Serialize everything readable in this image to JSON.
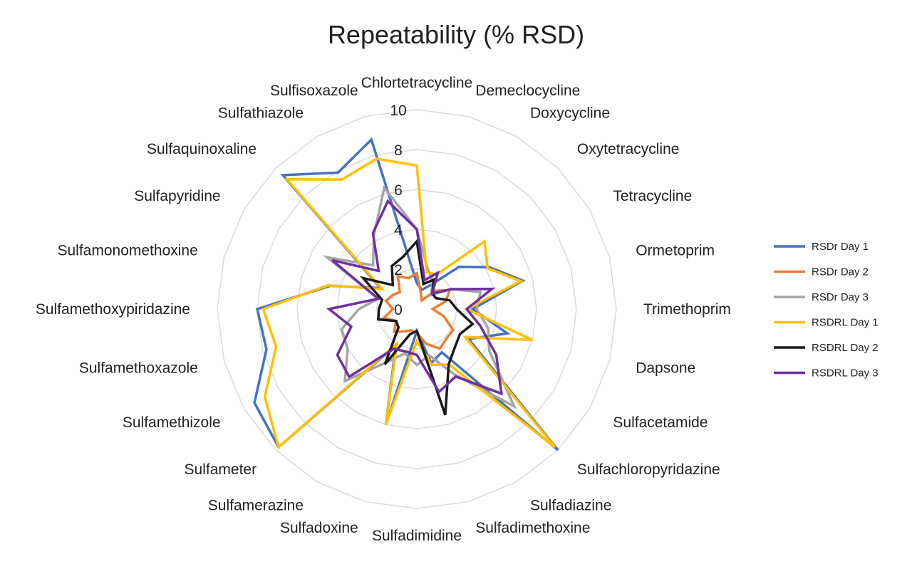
{
  "chart_data": {
    "type": "radar",
    "title": "Repeatability (% RSD)",
    "categories": [
      "Chlortetracycline",
      "Demeclocycline",
      "Doxycycline",
      "Oxytetracycline",
      "Tetracycline",
      "Ormetoprim",
      "Trimethoprim",
      "Dapsone",
      "Sulfacetamide",
      "Sulfachloropyridazine",
      "Sulfadiazine",
      "Sulfadimethoxine",
      "Sulfadimidine",
      "Sulfadoxine",
      "Sulfamerazine",
      "Sulfameter",
      "Sulfamethizole",
      "Sulfamethoxazole",
      "Sulfamethoxypiridazine",
      "Sulfamonomethoxine",
      "Sulfapyridine",
      "Sulfaquinoxaline",
      "Sulfathiazole",
      "Sulfisoxazole"
    ],
    "r_ticks": [
      0,
      2,
      4,
      6,
      8,
      10
    ],
    "rlim": [
      0,
      10
    ],
    "grid": true,
    "legend_position": "right",
    "series": [
      {
        "name": "RSDr Day 1",
        "color": "#4472C4",
        "values": [
          1.3,
          1.0,
          1.4,
          3.0,
          4.2,
          5.5,
          2.8,
          4.7,
          3.0,
          10.0,
          2.5,
          2.8,
          1.1,
          6.0,
          2.1,
          9.8,
          9.4,
          7.8,
          8.0,
          4.5,
          2.1,
          9.5,
          7.9,
          8.8
        ]
      },
      {
        "name": "RSDr Day 2",
        "color": "#ED7D31",
        "values": [
          1.8,
          0.8,
          0.5,
          1.3,
          1.9,
          1.5,
          0.8,
          1.4,
          2.1,
          2.1,
          2.3,
          1.8,
          1.2,
          1.1,
          1.3,
          1.6,
          1.2,
          1.7,
          1.2,
          1.6,
          1.4,
          1.2,
          1.9,
          1.6
        ]
      },
      {
        "name": "RSDr Day 3",
        "color": "#A5A5A5",
        "values": [
          4.0,
          2.1,
          1.6,
          1.0,
          2.0,
          3.3,
          3.0,
          3.7,
          4.2,
          6.9,
          3.8,
          2.4,
          2.8,
          2.3,
          3.1,
          5.1,
          4.0,
          3.9,
          2.9,
          2.0,
          5.2,
          3.1,
          4.3,
          6.3
        ]
      },
      {
        "name": "RSDRL Day 1",
        "color": "#FFC000",
        "values": [
          7.2,
          1.9,
          2.0,
          4.8,
          4.1,
          5.4,
          2.5,
          6.0,
          2.8,
          9.8,
          3.2,
          2.9,
          1.6,
          6.0,
          2.0,
          9.8,
          8.8,
          7.3,
          7.7,
          4.6,
          2.0,
          9.2,
          7.5,
          7.8
        ]
      },
      {
        "name": "RSDRL Day 2",
        "color": "#1A1A1A",
        "values": [
          3.4,
          1.3,
          1.7,
          1.1,
          1.1,
          1.7,
          2.0,
          2.9,
          2.5,
          2.7,
          3.2,
          5.5,
          1.1,
          1.3,
          3.2,
          1.3,
          1.2,
          2.0,
          1.9,
          1.8,
          3.1,
          1.7,
          2.5,
          2.7
        ]
      },
      {
        "name": "RSDRL Day 3",
        "color": "#7030A0",
        "values": [
          4.0,
          1.5,
          2.1,
          1.1,
          2.0,
          3.9,
          2.5,
          3.3,
          4.6,
          6.0,
          3.9,
          4.3,
          2.3,
          2.2,
          2.3,
          4.8,
          4.6,
          3.4,
          4.4,
          2.0,
          4.9,
          2.7,
          4.4,
          5.6
        ]
      }
    ]
  }
}
